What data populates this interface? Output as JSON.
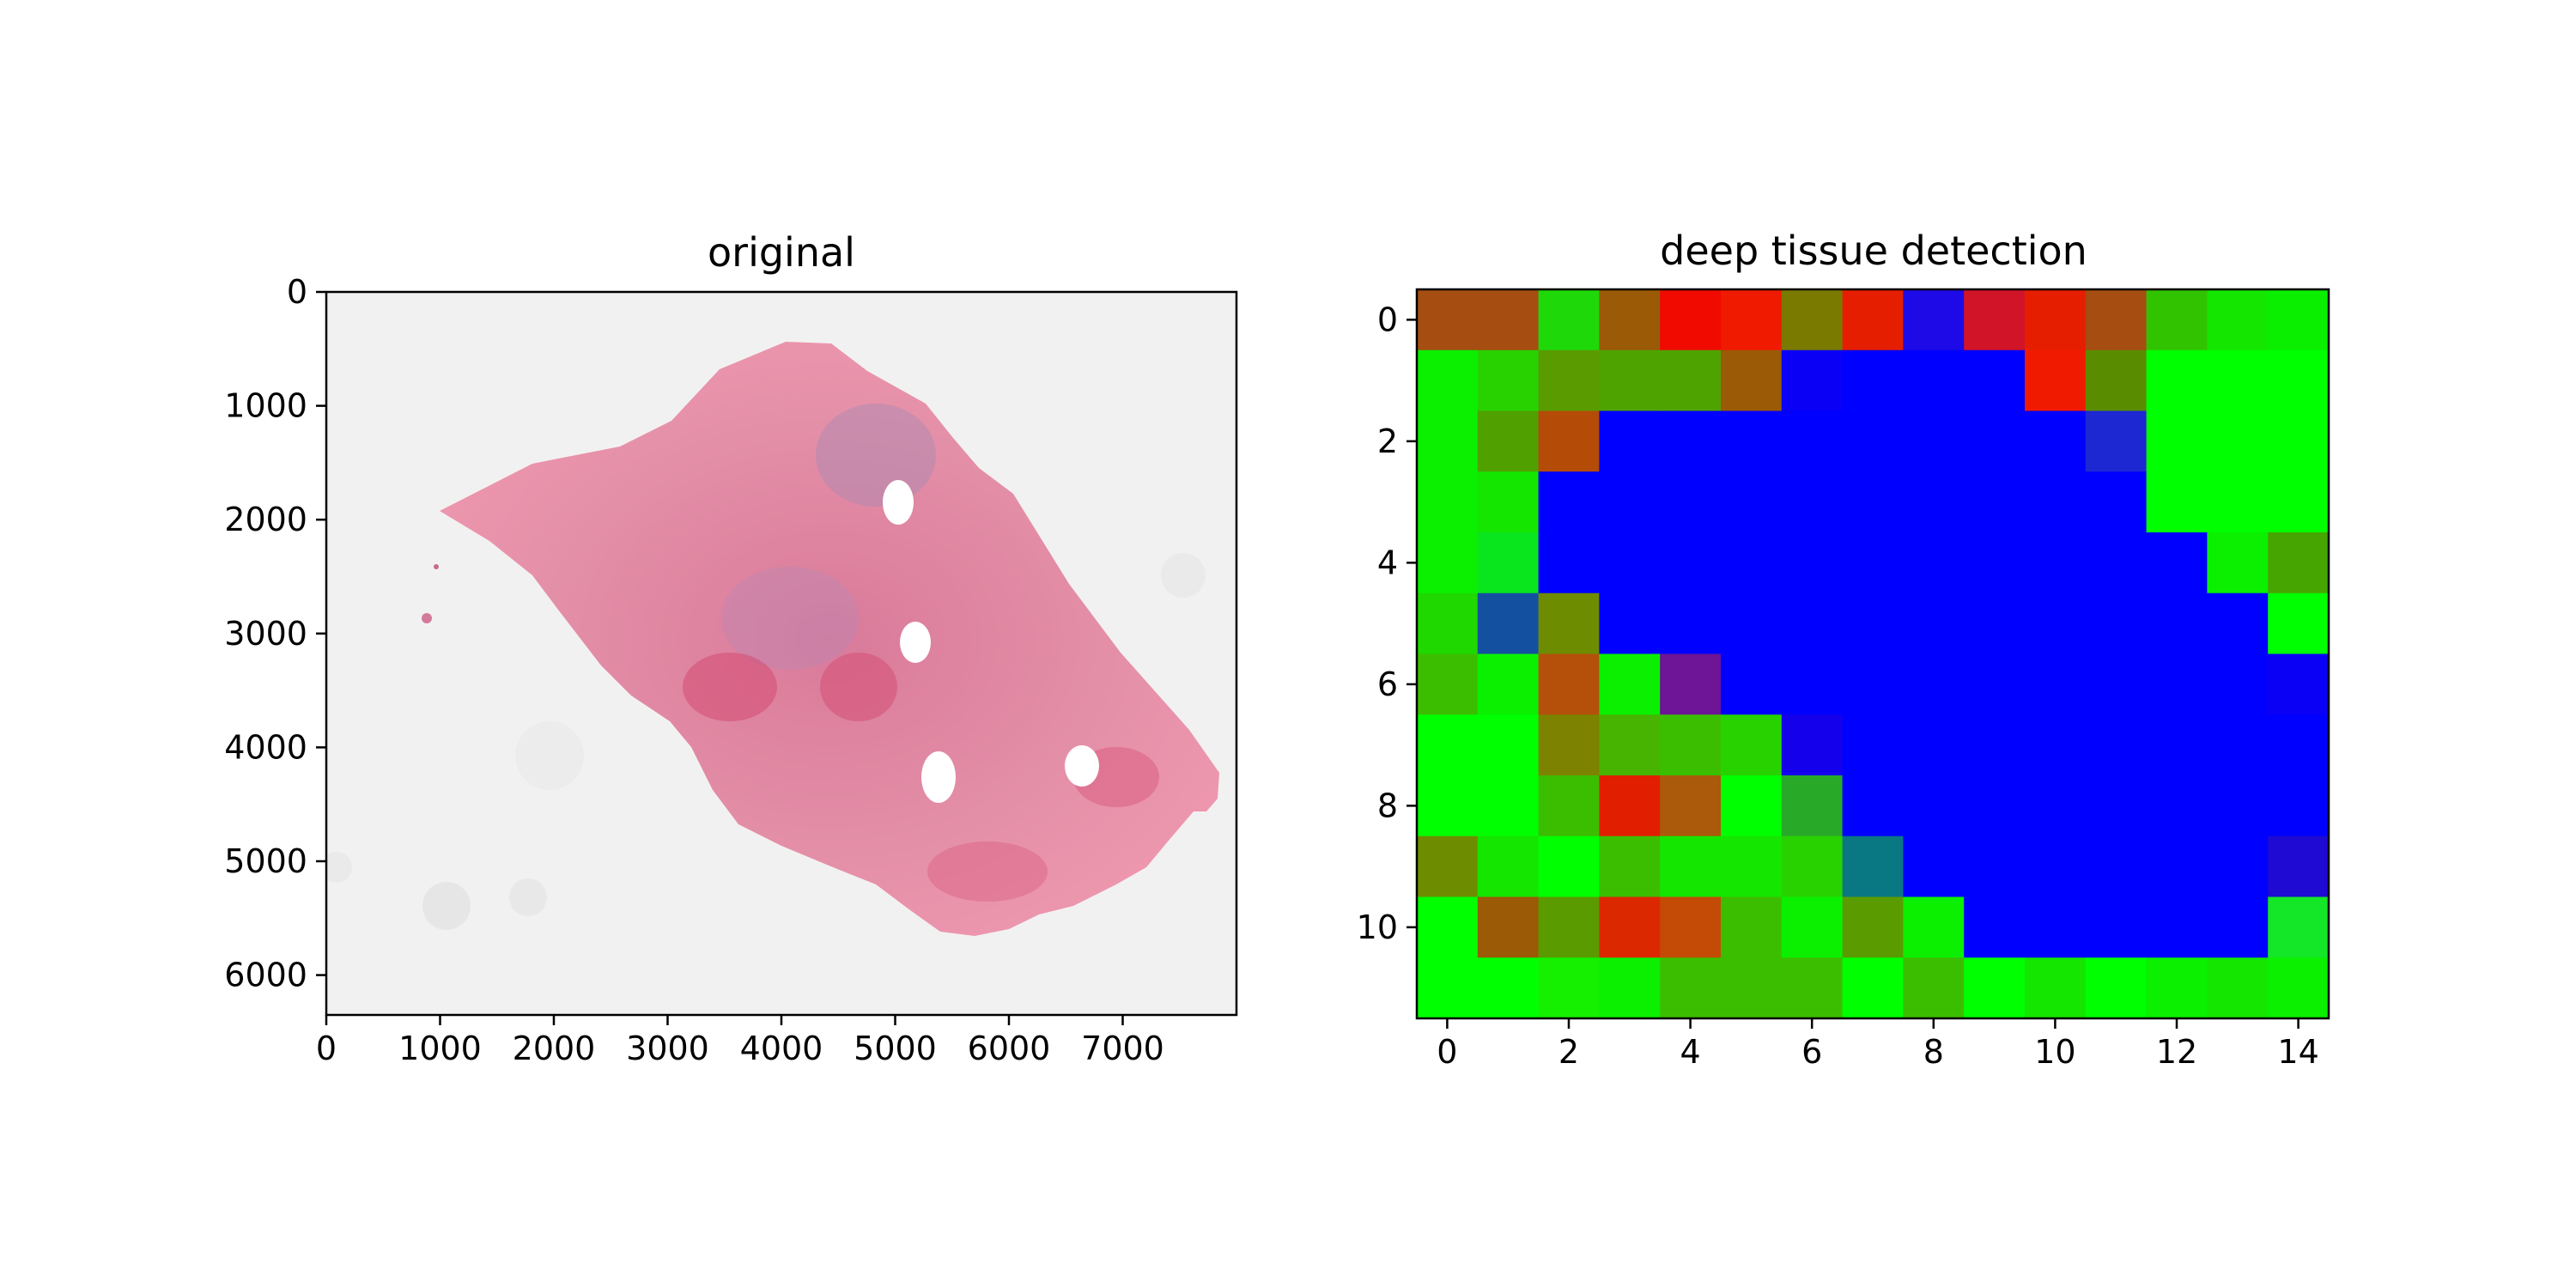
{
  "chart_data": [
    {
      "type": "image",
      "title": "original",
      "xlim": [
        0,
        8000
      ],
      "ylim": [
        6350,
        0
      ],
      "xticks": [
        0,
        1000,
        2000,
        3000,
        4000,
        5000,
        6000,
        7000
      ],
      "yticks": [
        0,
        1000,
        2000,
        3000,
        4000,
        5000,
        6000
      ],
      "xlabel": "",
      "ylabel": ""
    },
    {
      "type": "heatmap",
      "title": "deep tissue detection",
      "xticks": [
        0,
        2,
        4,
        6,
        8,
        10,
        12,
        14
      ],
      "yticks": [
        0,
        2,
        4,
        6,
        8,
        10
      ],
      "xlim": [
        -0.5,
        14.5
      ],
      "ylim": [
        11.5,
        -0.5
      ],
      "xlabel": "",
      "ylabel": "",
      "cells": [
        [
          "#a64d12",
          "#a64d12",
          "#1ed80a",
          "#9a5a06",
          "#f00a00",
          "#f01a00",
          "#7a7a00",
          "#e61e00",
          "#1e0ae6",
          "#d21428",
          "#e61e00",
          "#a64d12",
          "#32c300",
          "#14e600",
          "#0aef00"
        ],
        [
          "#0af000",
          "#28d200",
          "#5a9b00",
          "#4ea300",
          "#4ea300",
          "#9a5a06",
          "#0a00f5",
          "#0000ff",
          "#0000ff",
          "#0000ff",
          "#f01a00",
          "#5a8c00",
          "#00ff00",
          "#00ff00",
          "#00ff00"
        ],
        [
          "#0af000",
          "#50a000",
          "#b44b06",
          "#0000ff",
          "#0000ff",
          "#0000ff",
          "#0000ff",
          "#0000ff",
          "#0000ff",
          "#0000ff",
          "#0000ff",
          "#1e28d2",
          "#00ff00",
          "#00ff00",
          "#00ff00"
        ],
        [
          "#0af000",
          "#14e600",
          "#0000ff",
          "#0000ff",
          "#0000ff",
          "#0000ff",
          "#0000ff",
          "#0000ff",
          "#0000ff",
          "#0000ff",
          "#0000ff",
          "#0000ff",
          "#00ff00",
          "#00ff00",
          "#00ff00"
        ],
        [
          "#0af000",
          "#0ae61e",
          "#0000ff",
          "#0000ff",
          "#0000ff",
          "#0000ff",
          "#0000ff",
          "#0000ff",
          "#0000ff",
          "#0000ff",
          "#0000ff",
          "#0000ff",
          "#0000ff",
          "#0af000",
          "#46a500"
        ],
        [
          "#1ed800",
          "#1450a0",
          "#6e8c00",
          "#0000ff",
          "#0000ff",
          "#0000ff",
          "#0000ff",
          "#0000ff",
          "#0000ff",
          "#0000ff",
          "#0000ff",
          "#0000ff",
          "#0000ff",
          "#0000ff",
          "#00ff00"
        ],
        [
          "#3cbe00",
          "#0af000",
          "#b4500a",
          "#0af000",
          "#6e1496",
          "#0000ff",
          "#0000ff",
          "#0000ff",
          "#0000ff",
          "#0000ff",
          "#0000ff",
          "#0000ff",
          "#0000ff",
          "#0000ff",
          "#0a00f5"
        ],
        [
          "#00ff00",
          "#00ff00",
          "#7d8200",
          "#46b400",
          "#3cbe00",
          "#28d200",
          "#1400eb",
          "#0000ff",
          "#0000ff",
          "#0000ff",
          "#0000ff",
          "#0000ff",
          "#0000ff",
          "#0000ff",
          "#0000ff"
        ],
        [
          "#00ff00",
          "#00ff00",
          "#3cbe00",
          "#e11e00",
          "#aa5a0a",
          "#00ff00",
          "#28aa28",
          "#0000ff",
          "#0000ff",
          "#0000ff",
          "#0000ff",
          "#0000ff",
          "#0000ff",
          "#0000ff",
          "#0000ff"
        ],
        [
          "#6e8c00",
          "#14e600",
          "#00ff00",
          "#3cbe00",
          "#14e600",
          "#14e600",
          "#28d200",
          "#0a7882",
          "#0000ff",
          "#0000ff",
          "#0000ff",
          "#0000ff",
          "#0000ff",
          "#0000ff",
          "#1e0ad2"
        ],
        [
          "#00ff00",
          "#9a5a06",
          "#5a9b00",
          "#dc2800",
          "#c34b06",
          "#3cbe00",
          "#0af000",
          "#5a9b00",
          "#0af000",
          "#0000ff",
          "#0000ff",
          "#0000ff",
          "#0000ff",
          "#0000ff",
          "#14e628"
        ],
        [
          "#00ff00",
          "#00ff00",
          "#14f000",
          "#0af000",
          "#3cbe00",
          "#3cbe00",
          "#3cbe00",
          "#00ff00",
          "#3cbe00",
          "#00ff00",
          "#14e600",
          "#00ff00",
          "#0af000",
          "#14e600",
          "#0af000"
        ]
      ]
    }
  ]
}
